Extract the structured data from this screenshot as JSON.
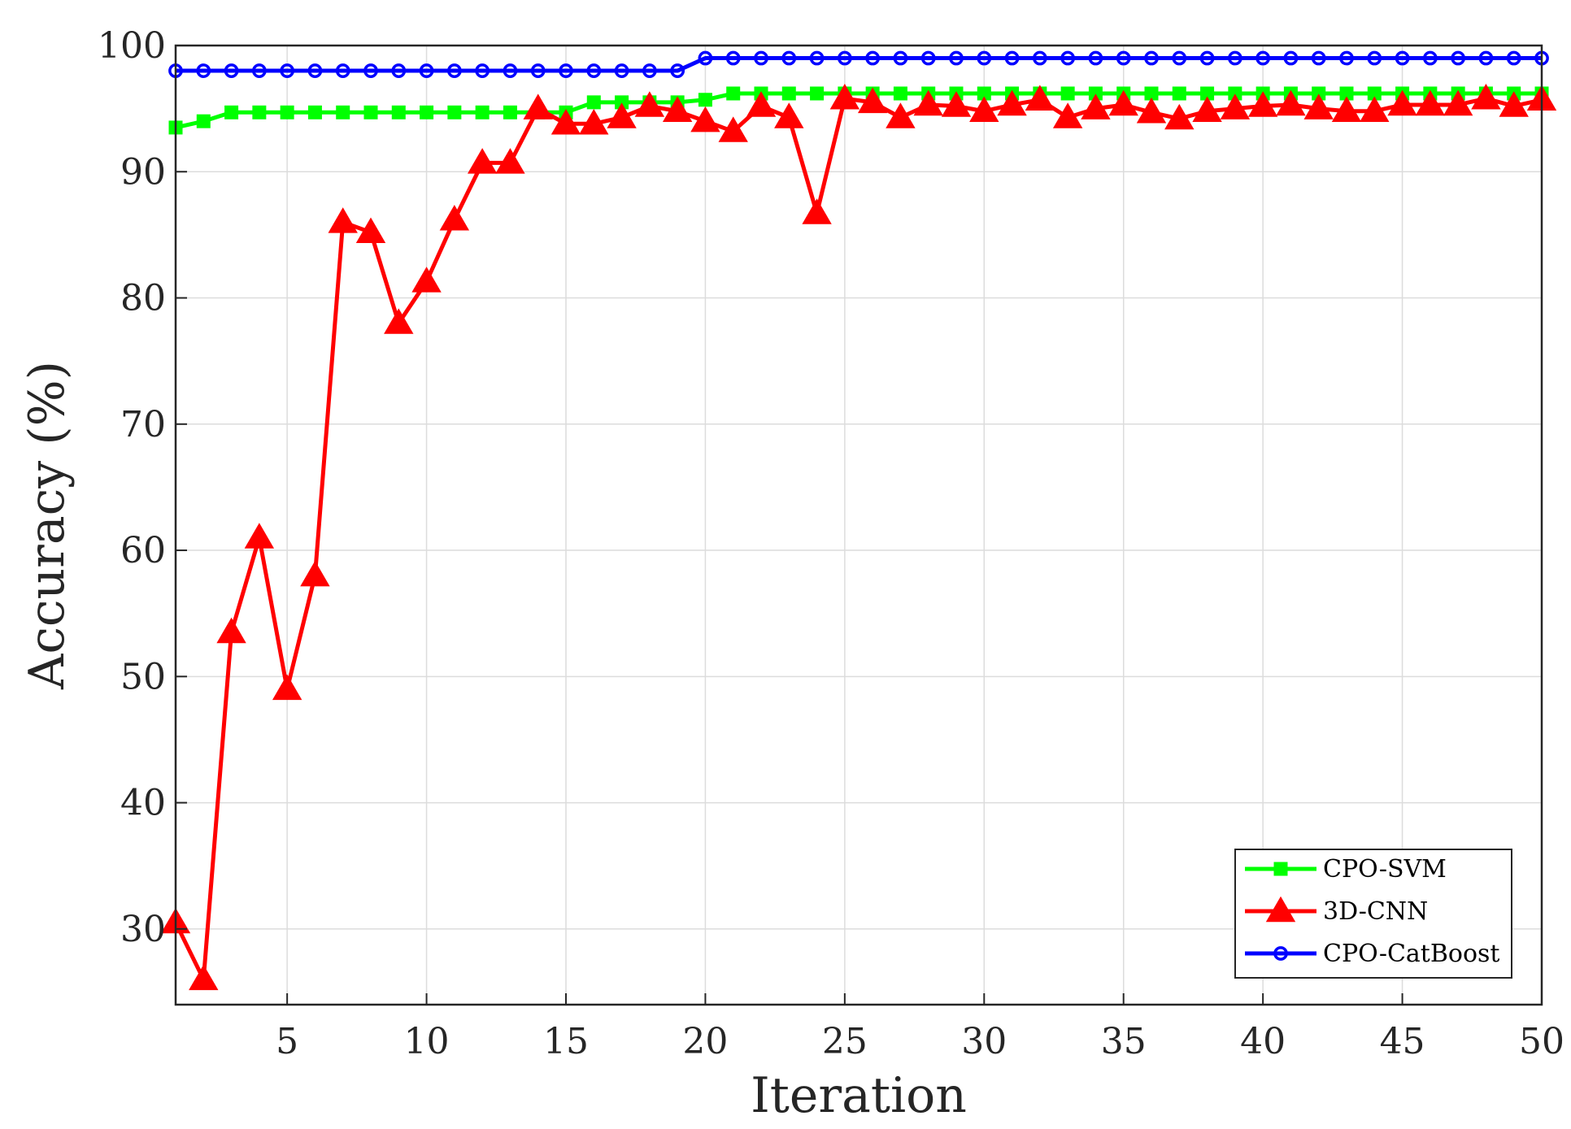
{
  "chart_data": {
    "type": "line",
    "title": "",
    "xlabel": "Iteration",
    "ylabel": "Accuracy (%)",
    "xlim": [
      1,
      50
    ],
    "ylim": [
      24,
      100
    ],
    "xticks": [
      5,
      10,
      15,
      20,
      25,
      30,
      35,
      40,
      45,
      50
    ],
    "yticks": [
      30,
      40,
      50,
      60,
      70,
      80,
      90,
      100
    ],
    "grid": true,
    "legend_position": "bottom-right",
    "x": [
      1,
      2,
      3,
      4,
      5,
      6,
      7,
      8,
      9,
      10,
      11,
      12,
      13,
      14,
      15,
      16,
      17,
      18,
      19,
      20,
      21,
      22,
      23,
      24,
      25,
      26,
      27,
      28,
      29,
      30,
      31,
      32,
      33,
      34,
      35,
      36,
      37,
      38,
      39,
      40,
      41,
      42,
      43,
      44,
      45,
      46,
      47,
      48,
      49,
      50
    ],
    "series": [
      {
        "name": "CPO-SVM",
        "color": "#00ff00",
        "marker": "square",
        "values": [
          93.5,
          94.0,
          94.7,
          94.7,
          94.7,
          94.7,
          94.7,
          94.7,
          94.7,
          94.7,
          94.7,
          94.7,
          94.7,
          94.7,
          94.7,
          95.5,
          95.5,
          95.5,
          95.5,
          95.7,
          96.2,
          96.2,
          96.2,
          96.2,
          96.2,
          96.2,
          96.2,
          96.2,
          96.2,
          96.2,
          96.2,
          96.2,
          96.2,
          96.2,
          96.2,
          96.2,
          96.2,
          96.2,
          96.2,
          96.2,
          96.2,
          96.2,
          96.2,
          96.2,
          96.2,
          96.2,
          96.2,
          96.2,
          96.2,
          96.2
        ]
      },
      {
        "name": "3D-CNN",
        "color": "#ff0000",
        "marker": "triangle",
        "values": [
          30.5,
          26.0,
          53.5,
          61.0,
          49.0,
          58.0,
          86.0,
          85.2,
          78.0,
          81.3,
          86.2,
          90.7,
          90.7,
          95.0,
          93.8,
          93.8,
          94.3,
          95.2,
          94.8,
          94.0,
          93.2,
          95.2,
          94.3,
          86.7,
          95.8,
          95.5,
          94.3,
          95.3,
          95.2,
          94.8,
          95.3,
          95.7,
          94.3,
          95.0,
          95.3,
          94.7,
          94.2,
          94.8,
          95.0,
          95.2,
          95.3,
          95.0,
          94.8,
          94.8,
          95.3,
          95.3,
          95.3,
          95.8,
          95.2,
          95.7
        ]
      },
      {
        "name": "CPO-CatBoost",
        "color": "#0000ff",
        "marker": "circle",
        "values": [
          98.0,
          98.0,
          98.0,
          98.0,
          98.0,
          98.0,
          98.0,
          98.0,
          98.0,
          98.0,
          98.0,
          98.0,
          98.0,
          98.0,
          98.0,
          98.0,
          98.0,
          98.0,
          98.0,
          99.0,
          99.0,
          99.0,
          99.0,
          99.0,
          99.0,
          99.0,
          99.0,
          99.0,
          99.0,
          99.0,
          99.0,
          99.0,
          99.0,
          99.0,
          99.0,
          99.0,
          99.0,
          99.0,
          99.0,
          99.0,
          99.0,
          99.0,
          99.0,
          99.0,
          99.0,
          99.0,
          99.0,
          99.0,
          99.0,
          99.0
        ]
      }
    ]
  }
}
